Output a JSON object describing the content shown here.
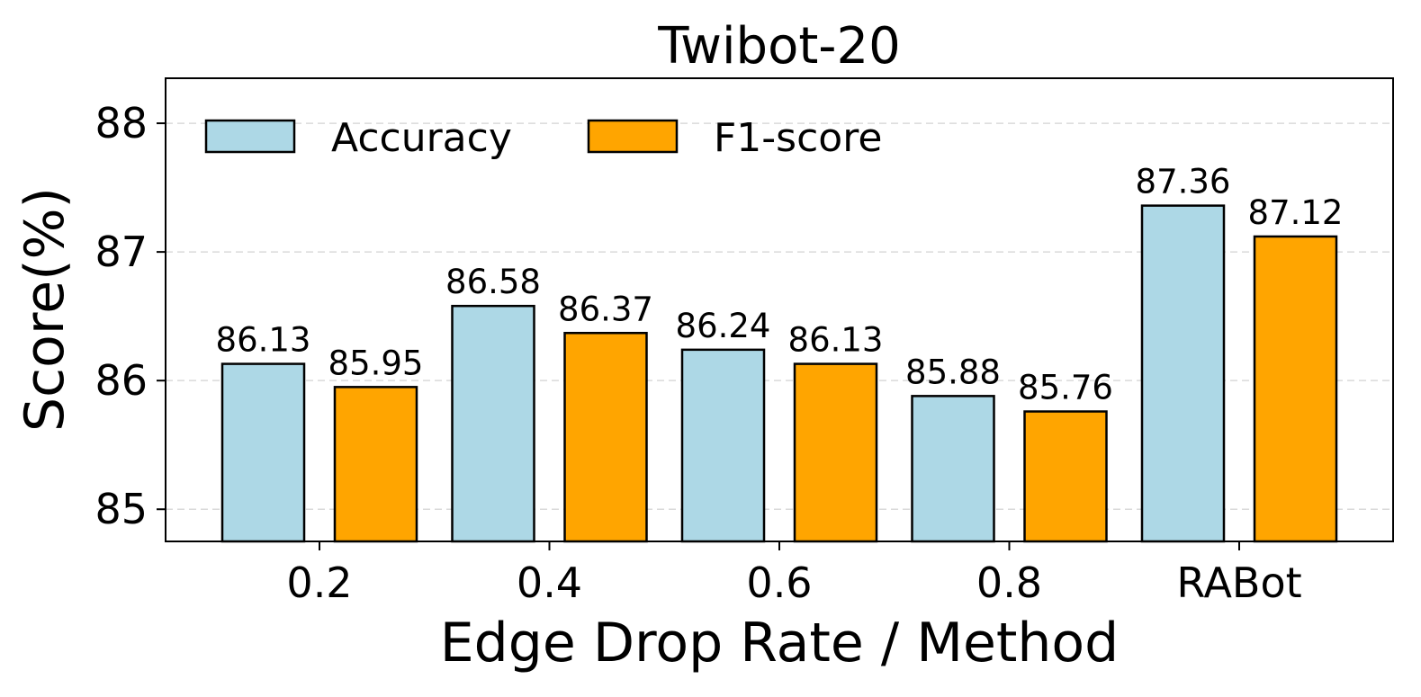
{
  "chart_data": {
    "type": "bar",
    "title": "Twibot-20",
    "xlabel": "Edge Drop Rate / Method",
    "ylabel": "Score(%)",
    "categories": [
      "0.2",
      "0.4",
      "0.6",
      "0.8",
      "RABot"
    ],
    "series": [
      {
        "name": "Accuracy",
        "color": "#add8e6",
        "values": [
          86.13,
          86.58,
          86.24,
          85.88,
          87.36
        ]
      },
      {
        "name": "F1-score",
        "color": "#ffa500",
        "values": [
          85.95,
          86.37,
          86.13,
          85.76,
          87.12
        ]
      }
    ],
    "ylim": [
      84.75,
      88.35
    ],
    "yticks": [
      85,
      86,
      87,
      88
    ],
    "grid": "y-dashed",
    "legend": "top-left"
  }
}
